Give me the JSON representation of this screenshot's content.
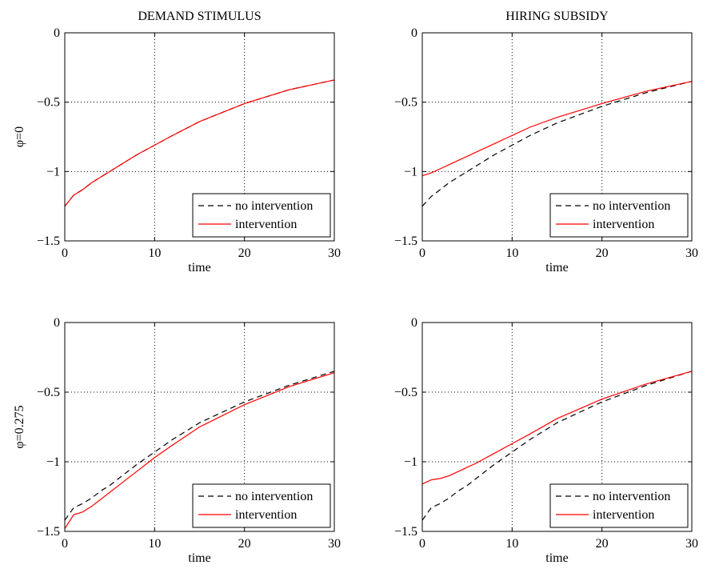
{
  "chart_data": [
    {
      "type": "line",
      "title": "DEMAND STIMULUS",
      "xlabel": "time",
      "ylabel": "φ=0",
      "xlim": [
        0,
        30
      ],
      "ylim": [
        -1.5,
        0
      ],
      "xticks": [
        0,
        10,
        20,
        30
      ],
      "xtick_labels": [
        "0",
        "10",
        "20",
        "30"
      ],
      "yticks": [
        -1.5,
        -1,
        -0.5,
        0
      ],
      "ytick_labels": [
        "−1.5",
        "−1",
        "−0.5",
        "0"
      ],
      "grid": true,
      "legend_position": "bottom-right",
      "x": [
        0,
        1,
        2,
        3,
        4,
        5,
        6,
        8,
        10,
        12,
        15,
        20,
        25,
        30
      ],
      "series": [
        {
          "name": "no intervention",
          "color": "#000000",
          "dash": "dashed",
          "values": [
            -1.25,
            -1.17,
            -1.13,
            -1.08,
            -1.04,
            -1.0,
            -0.96,
            -0.88,
            -0.81,
            -0.74,
            -0.64,
            -0.51,
            -0.41,
            -0.34
          ]
        },
        {
          "name": "intervention",
          "color": "#ff0000",
          "dash": "solid",
          "values": [
            -1.25,
            -1.17,
            -1.13,
            -1.08,
            -1.04,
            -1.0,
            -0.96,
            -0.88,
            -0.81,
            -0.74,
            -0.64,
            -0.51,
            -0.41,
            -0.34
          ]
        }
      ]
    },
    {
      "type": "line",
      "title": "HIRING SUBSIDY",
      "xlabel": "time",
      "ylabel": "",
      "xlim": [
        0,
        30
      ],
      "ylim": [
        -1.5,
        0
      ],
      "xticks": [
        0,
        10,
        20,
        30
      ],
      "xtick_labels": [
        "0",
        "10",
        "20",
        "30"
      ],
      "yticks": [
        -1.5,
        -1,
        -0.5,
        0
      ],
      "ytick_labels": [
        "−1.5",
        "−1",
        "−0.5",
        "0"
      ],
      "grid": true,
      "legend_position": "bottom-right",
      "x": [
        0,
        1,
        2,
        3,
        4,
        5,
        6,
        8,
        10,
        12,
        15,
        20,
        25,
        30
      ],
      "series": [
        {
          "name": "no intervention",
          "color": "#000000",
          "dash": "dashed",
          "values": [
            -1.25,
            -1.18,
            -1.13,
            -1.08,
            -1.04,
            -1.0,
            -0.96,
            -0.88,
            -0.81,
            -0.74,
            -0.65,
            -0.53,
            -0.43,
            -0.35
          ]
        },
        {
          "name": "intervention",
          "color": "#ff0000",
          "dash": "solid",
          "values": [
            -1.03,
            -1.01,
            -0.98,
            -0.95,
            -0.92,
            -0.89,
            -0.86,
            -0.8,
            -0.74,
            -0.68,
            -0.61,
            -0.51,
            -0.42,
            -0.35
          ]
        }
      ]
    },
    {
      "type": "line",
      "title": "",
      "xlabel": "time",
      "ylabel": "φ=0.275",
      "xlim": [
        0,
        30
      ],
      "ylim": [
        -1.5,
        0
      ],
      "xticks": [
        0,
        10,
        20,
        30
      ],
      "xtick_labels": [
        "0",
        "10",
        "20",
        "30"
      ],
      "yticks": [
        -1.5,
        -1,
        -0.5,
        0
      ],
      "ytick_labels": [
        "−1.5",
        "−1",
        "−0.5",
        "0"
      ],
      "grid": true,
      "legend_position": "bottom-right",
      "x": [
        0,
        1,
        2,
        3,
        4,
        5,
        6,
        8,
        10,
        12,
        15,
        20,
        25,
        30
      ],
      "series": [
        {
          "name": "no intervention",
          "color": "#000000",
          "dash": "dashed",
          "values": [
            -1.42,
            -1.33,
            -1.3,
            -1.26,
            -1.21,
            -1.17,
            -1.12,
            -1.02,
            -0.93,
            -0.84,
            -0.72,
            -0.57,
            -0.45,
            -0.35
          ]
        },
        {
          "name": "intervention",
          "color": "#ff0000",
          "dash": "solid",
          "values": [
            -1.48,
            -1.38,
            -1.36,
            -1.32,
            -1.27,
            -1.22,
            -1.17,
            -1.07,
            -0.97,
            -0.88,
            -0.75,
            -0.59,
            -0.46,
            -0.36
          ]
        }
      ]
    },
    {
      "type": "line",
      "title": "",
      "xlabel": "time",
      "ylabel": "",
      "xlim": [
        0,
        30
      ],
      "ylim": [
        -1.5,
        0
      ],
      "xticks": [
        0,
        10,
        20,
        30
      ],
      "xtick_labels": [
        "0",
        "10",
        "20",
        "30"
      ],
      "yticks": [
        -1.5,
        -1,
        -0.5,
        0
      ],
      "ytick_labels": [
        "−1.5",
        "−1",
        "−0.5",
        "0"
      ],
      "grid": true,
      "legend_position": "bottom-right",
      "x": [
        0,
        1,
        2,
        3,
        4,
        5,
        6,
        8,
        10,
        12,
        15,
        20,
        25,
        30
      ],
      "series": [
        {
          "name": "no intervention",
          "color": "#000000",
          "dash": "dashed",
          "values": [
            -1.42,
            -1.33,
            -1.3,
            -1.26,
            -1.21,
            -1.17,
            -1.12,
            -1.02,
            -0.93,
            -0.84,
            -0.72,
            -0.57,
            -0.45,
            -0.35
          ]
        },
        {
          "name": "intervention",
          "color": "#ff0000",
          "dash": "solid",
          "values": [
            -1.16,
            -1.13,
            -1.12,
            -1.1,
            -1.07,
            -1.04,
            -1.01,
            -0.94,
            -0.87,
            -0.8,
            -0.69,
            -0.55,
            -0.44,
            -0.35
          ]
        }
      ]
    }
  ]
}
